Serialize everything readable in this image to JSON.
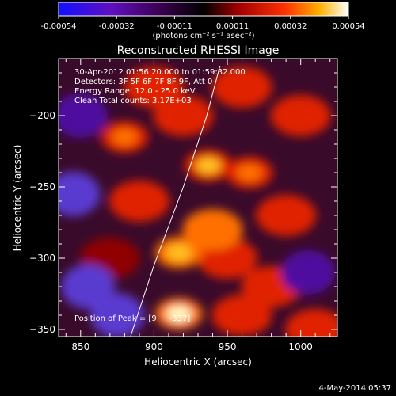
{
  "chart_data": {
    "type": "heatmap",
    "title": "Reconstructed RHESSI Image",
    "xlabel": "Heliocentric X (arcsec)",
    "ylabel": "Heliocentric Y (arcsec)",
    "xlim": [
      835,
      1025
    ],
    "ylim": [
      -355,
      -160
    ],
    "x_ticks": [
      850,
      900,
      950,
      1000
    ],
    "y_ticks": [
      -200,
      -250,
      -300,
      -350
    ],
    "colorbar": {
      "range": [
        -0.00054,
        0.00054
      ],
      "ticks": [
        "-0.00054",
        "-0.00032",
        "-0.00011",
        "0.00011",
        "0.00032",
        "0.00054"
      ],
      "label": "(photons cm⁻² s⁻¹ asec⁻²)",
      "colors": [
        "#1010ff",
        "#7000a0",
        "#000000",
        "#a00000",
        "#ff3000",
        "#ffb000",
        "#ffffff"
      ]
    },
    "annotations": [
      "30-Apr-2012 01:56:20.000 to 01:59:32.000",
      "Detectors: 3F 5F 6F 7F 8F 9F, Att 0",
      "Energy Range: 12.0 - 25.0 keV",
      "Clean    Total counts: 3.17E+03"
    ],
    "peak_label": "Position of Peak = [9",
    "peak_label_tail": "-337]",
    "limb_curve": [
      [
        884,
        -355
      ],
      [
        900,
        -305
      ],
      [
        920,
        -250
      ],
      [
        936,
        -200
      ],
      [
        945,
        -165
      ]
    ],
    "bright_sources": [
      {
        "x": 917,
        "y": -339,
        "value": 0.00054
      },
      {
        "x": 917,
        "y": -296,
        "value": 0.00045
      },
      {
        "x": 937,
        "y": -235,
        "value": 0.00042
      },
      {
        "x": 965,
        "y": -240,
        "value": 0.00035
      },
      {
        "x": 880,
        "y": -215,
        "value": 0.0003
      }
    ],
    "dim_sources": [
      {
        "x": 850,
        "y": -200,
        "value": -0.00025
      },
      {
        "x": 845,
        "y": -255,
        "value": -0.0003
      },
      {
        "x": 855,
        "y": -320,
        "value": -0.0003
      },
      {
        "x": 875,
        "y": -340,
        "value": -0.00028
      },
      {
        "x": 1005,
        "y": -310,
        "value": -0.0002
      }
    ]
  },
  "footer": "4-May-2014 05:37"
}
